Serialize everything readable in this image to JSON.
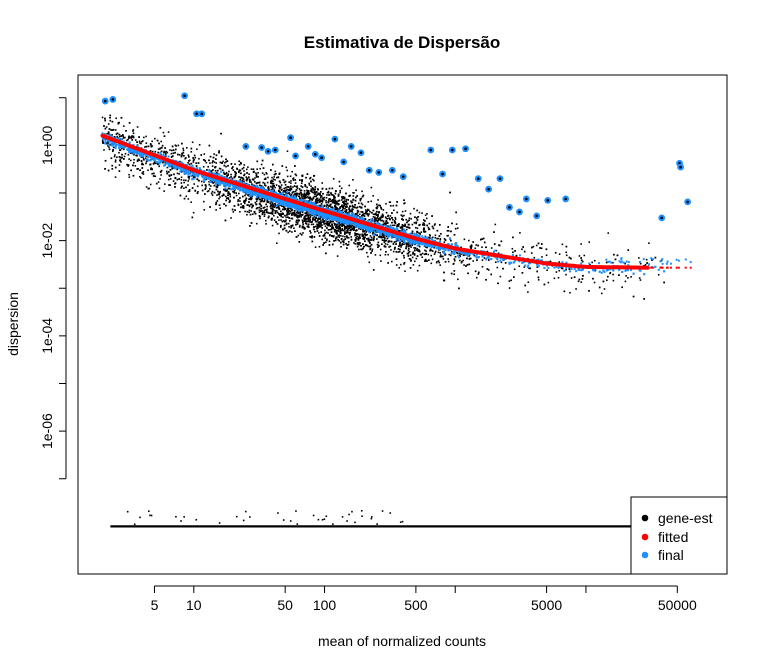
{
  "chart_data": {
    "type": "scatter",
    "title": "Estimativa de Dispersão",
    "xlabel": "mean of normalized counts",
    "ylabel": "dispersion",
    "x_scale": "log",
    "y_scale": "log",
    "xlim": [
      1.3,
      120000
    ],
    "ylim": [
      1e-09,
      30
    ],
    "x_ticks": [
      {
        "value": 5,
        "label": "5"
      },
      {
        "value": 10,
        "label": "10"
      },
      {
        "value": 50,
        "label": "50"
      },
      {
        "value": 100,
        "label": "100"
      },
      {
        "value": 500,
        "label": "500"
      },
      {
        "value": 1000,
        "label": ""
      },
      {
        "value": 5000,
        "label": "5000"
      },
      {
        "value": 10000,
        "label": ""
      },
      {
        "value": 50000,
        "label": "50000"
      }
    ],
    "y_ticks": [
      {
        "value": 10,
        "label": ""
      },
      {
        "value": 1,
        "label": "1e+00"
      },
      {
        "value": 0.1,
        "label": ""
      },
      {
        "value": 0.01,
        "label": "1e-02"
      },
      {
        "value": 0.001,
        "label": ""
      },
      {
        "value": 0.0001,
        "label": "1e-04"
      },
      {
        "value": 1e-05,
        "label": ""
      },
      {
        "value": 1e-06,
        "label": "1e-06"
      },
      {
        "value": 1e-07,
        "label": ""
      }
    ],
    "grid": false,
    "legend": {
      "position": "bottom-right",
      "entries": [
        {
          "label": "gene-est",
          "color": "#000000"
        },
        {
          "label": "fitted",
          "color": "#ff0000"
        },
        {
          "label": "final",
          "color": "#1e90ff"
        }
      ]
    },
    "fitted_curve": {
      "color": "#ff0000",
      "points": [
        [
          2.0,
          1.6
        ],
        [
          5,
          0.62
        ],
        [
          10,
          0.3
        ],
        [
          50,
          0.075
        ],
        [
          100,
          0.042
        ],
        [
          500,
          0.011
        ],
        [
          1000,
          0.0068
        ],
        [
          5000,
          0.0033
        ],
        [
          10000,
          0.0028
        ],
        [
          30000,
          0.0027
        ]
      ]
    },
    "final_outliers": {
      "color": "#1e90ff",
      "points": [
        [
          2.1,
          8.5
        ],
        [
          2.4,
          9.2
        ],
        [
          8.5,
          11
        ],
        [
          10.5,
          4.6
        ],
        [
          11.5,
          4.6
        ],
        [
          25,
          0.95
        ],
        [
          33,
          0.9
        ],
        [
          37,
          0.75
        ],
        [
          42,
          0.8
        ],
        [
          55,
          1.45
        ],
        [
          60,
          0.6
        ],
        [
          75,
          0.95
        ],
        [
          85,
          0.65
        ],
        [
          95,
          0.55
        ],
        [
          120,
          1.35
        ],
        [
          140,
          0.45
        ],
        [
          160,
          0.95
        ],
        [
          190,
          0.7
        ],
        [
          220,
          0.3
        ],
        [
          260,
          0.27
        ],
        [
          330,
          0.3
        ],
        [
          400,
          0.22
        ],
        [
          650,
          0.8
        ],
        [
          800,
          0.25
        ],
        [
          950,
          0.8
        ],
        [
          1200,
          0.85
        ],
        [
          1500,
          0.2
        ],
        [
          1800,
          0.12
        ],
        [
          2200,
          0.2
        ],
        [
          2600,
          0.05
        ],
        [
          3100,
          0.04
        ],
        [
          3500,
          0.075
        ],
        [
          4200,
          0.033
        ],
        [
          5100,
          0.07
        ],
        [
          7000,
          0.075
        ],
        [
          38000,
          0.03
        ],
        [
          52000,
          0.42
        ],
        [
          53000,
          0.35
        ],
        [
          60000,
          0.065
        ]
      ]
    },
    "zero_dispersion_gene_est": {
      "value": 1e-08,
      "x_range": [
        2.3,
        42000
      ]
    }
  }
}
